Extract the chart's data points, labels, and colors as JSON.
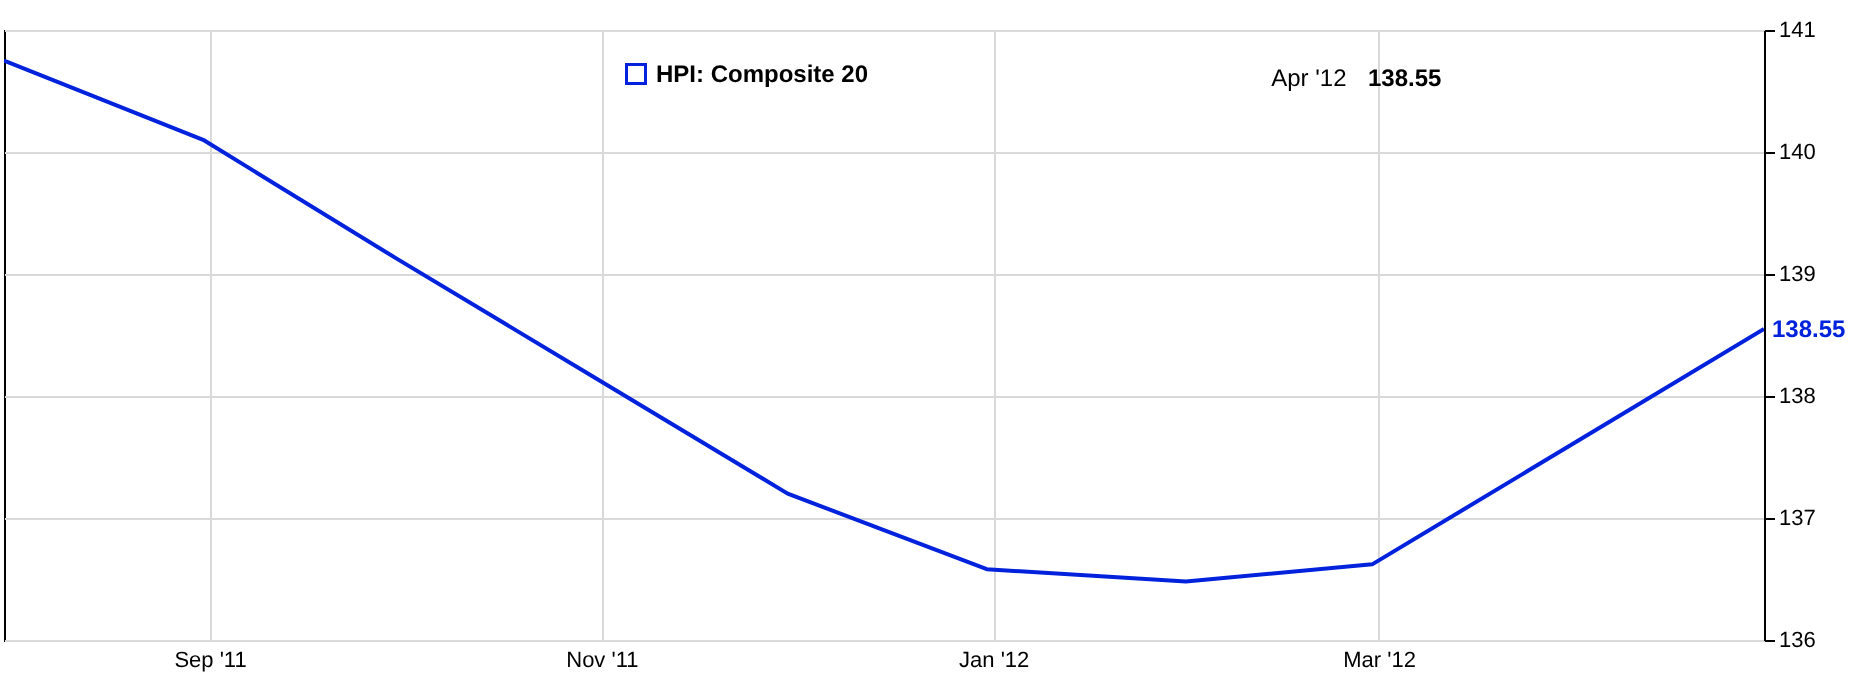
{
  "chart_data": {
    "type": "line",
    "x": [
      "2011-07-31",
      "2011-08-31",
      "2011-09-30",
      "2011-10-31",
      "2011-11-30",
      "2011-12-31",
      "2012-01-31",
      "2012-02-29",
      "2012-03-31",
      "2012-04-30"
    ],
    "series": [
      {
        "name": "HPI: Composite 20",
        "color": "#0022dd",
        "values": [
          140.75,
          140.1,
          139.13,
          138.15,
          137.2,
          136.58,
          136.48,
          136.62,
          137.6,
          138.55
        ]
      }
    ],
    "xlim": [
      "2011-07-31",
      "2012-04-30"
    ],
    "xticks": [
      {
        "value": "2011-09-01",
        "label": "Sep '11"
      },
      {
        "value": "2011-11-01",
        "label": "Nov '11"
      },
      {
        "value": "2012-01-01",
        "label": "Jan '12"
      },
      {
        "value": "2012-03-01",
        "label": "Mar '12"
      }
    ],
    "ylim": [
      136,
      141
    ],
    "yticks": [
      136,
      137,
      138,
      139,
      140,
      141
    ],
    "grid": true,
    "legend": "top",
    "marker": "none",
    "line_style": "solid",
    "annotations": [
      "Apr '12",
      "138.55",
      {
        "text": "138.55",
        "x": "2012-04-30",
        "y": 138.55
      }
    ]
  }
}
